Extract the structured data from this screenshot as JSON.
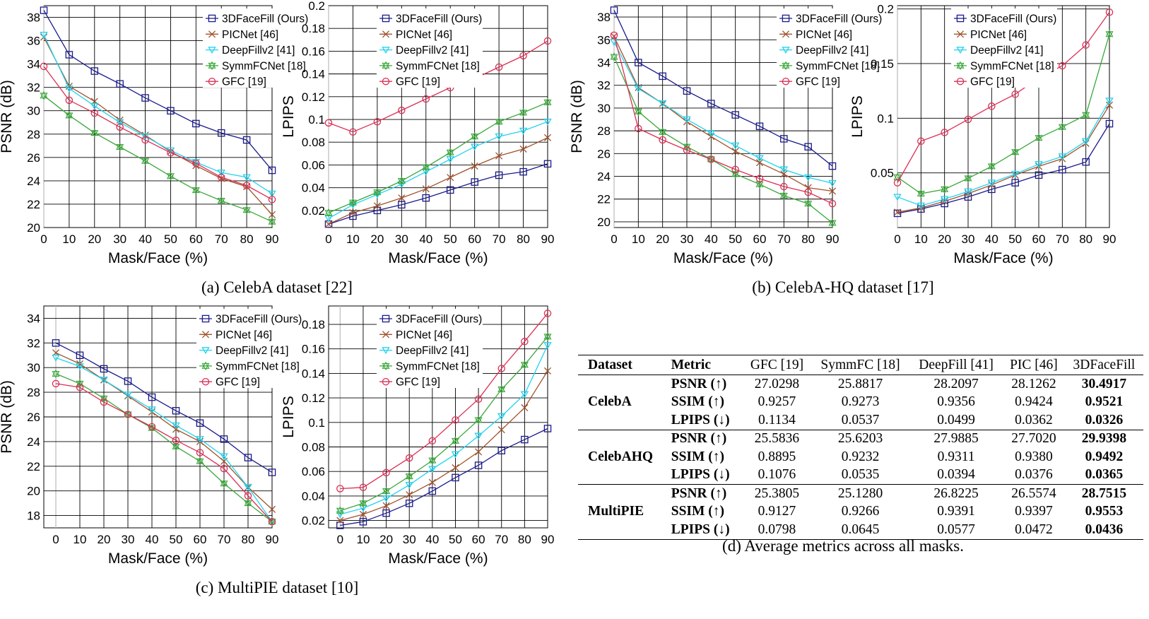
{
  "captions": {
    "a": "(a) CelebA dataset [22]",
    "b": "(b) CelebA-HQ dataset [17]",
    "c": "(c) MultiPIE dataset [10]",
    "d": "(d) Average metrics across all masks."
  },
  "colors": {
    "3dfacefill": "#1a1a8c",
    "picnet": "#a0522d",
    "deepfill": "#22d3ee",
    "symmfc": "#3aa83a",
    "gfc": "#dc2e55"
  },
  "chart_data": [
    {
      "id": "celeba-psnr",
      "type": "line",
      "title": "",
      "xlabel": "Mask/Face (%)",
      "ylabel": "PSNR (dB)",
      "x": [
        0,
        10,
        20,
        30,
        40,
        50,
        60,
        70,
        80,
        90
      ],
      "ylim": [
        20,
        39
      ],
      "yticks": [
        20,
        22,
        24,
        26,
        28,
        30,
        32,
        34,
        36,
        38
      ],
      "yticklabels": [
        "20",
        "22",
        "24",
        "26",
        "28",
        "30",
        "32",
        "34",
        "36",
        "38"
      ],
      "xticklabels": [
        "0",
        "10",
        "20",
        "30",
        "40",
        "50",
        "60",
        "70",
        "80",
        "90"
      ],
      "series": [
        {
          "name": "3DFaceFill (Ours)",
          "key": "3dfacefill",
          "marker": "square",
          "values": [
            38.6,
            34.8,
            33.4,
            32.3,
            31.1,
            30.0,
            28.9,
            28.1,
            27.5,
            24.9
          ]
        },
        {
          "name": "PICNet [46]",
          "key": "picnet",
          "marker": "x",
          "values": [
            36.3,
            32.1,
            30.8,
            29.2,
            27.9,
            26.5,
            25.3,
            24.2,
            23.5,
            21.1
          ]
        },
        {
          "name": "DeepFillv2 [41]",
          "key": "deepfill",
          "marker": "tri",
          "values": [
            36.5,
            31.9,
            30.4,
            29.0,
            27.8,
            26.6,
            25.6,
            24.7,
            24.3,
            22.9
          ]
        },
        {
          "name": "SymmFCNet [18]",
          "key": "symmfc",
          "marker": "star",
          "values": [
            31.3,
            29.6,
            28.1,
            26.9,
            25.7,
            24.4,
            23.2,
            22.3,
            21.5,
            20.5
          ]
        },
        {
          "name": "GFC [19]",
          "key": "gfc",
          "marker": "circle",
          "values": [
            33.8,
            30.9,
            29.8,
            28.6,
            27.5,
            26.4,
            25.5,
            24.3,
            23.6,
            22.4
          ]
        }
      ]
    },
    {
      "id": "celeba-lpips",
      "type": "line",
      "title": "",
      "xlabel": "Mask/Face (%)",
      "ylabel": "LPIPS",
      "x": [
        0,
        10,
        20,
        30,
        40,
        50,
        60,
        70,
        80,
        90
      ],
      "ylim": [
        0.005,
        0.2
      ],
      "yticks": [
        0.02,
        0.04,
        0.06,
        0.08,
        0.1,
        0.12,
        0.14,
        0.16,
        0.18,
        0.2
      ],
      "yticklabels": [
        "0.02",
        "0.04",
        "0.06",
        "0.08",
        "0.1",
        "0.12",
        "0.14",
        "0.16",
        "0.18",
        "0.2"
      ],
      "xticklabels": [
        "0",
        "10",
        "20",
        "30",
        "40",
        "50",
        "60",
        "70",
        "80",
        "90"
      ],
      "series": [
        {
          "name": "3DFaceFill (Ours)",
          "key": "3dfacefill",
          "marker": "square",
          "values": [
            0.008,
            0.015,
            0.02,
            0.025,
            0.031,
            0.038,
            0.045,
            0.051,
            0.054,
            0.061
          ]
        },
        {
          "name": "PICNet [46]",
          "key": "picnet",
          "marker": "x",
          "values": [
            0.008,
            0.018,
            0.024,
            0.031,
            0.039,
            0.049,
            0.059,
            0.068,
            0.074,
            0.084
          ]
        },
        {
          "name": "DeepFillv2 [41]",
          "key": "deepfill",
          "marker": "tri",
          "values": [
            0.013,
            0.025,
            0.034,
            0.043,
            0.054,
            0.065,
            0.076,
            0.085,
            0.09,
            0.098
          ]
        },
        {
          "name": "SymmFCNet [18]",
          "key": "symmfc",
          "marker": "star",
          "values": [
            0.018,
            0.027,
            0.036,
            0.046,
            0.058,
            0.071,
            0.085,
            0.098,
            0.106,
            0.115
          ]
        },
        {
          "name": "GFC [19]",
          "key": "gfc",
          "marker": "circle",
          "values": [
            0.097,
            0.089,
            0.098,
            0.108,
            0.118,
            0.128,
            0.136,
            0.146,
            0.156,
            0.169
          ]
        }
      ]
    },
    {
      "id": "celebahq-psnr",
      "type": "line",
      "title": "",
      "xlabel": "Mask/Face (%)",
      "ylabel": "PSNR (dB)",
      "x": [
        0,
        10,
        20,
        30,
        40,
        50,
        60,
        70,
        80,
        90
      ],
      "ylim": [
        19.5,
        39
      ],
      "yticks": [
        20,
        22,
        24,
        26,
        28,
        30,
        32,
        34,
        36,
        38
      ],
      "yticklabels": [
        "20",
        "22",
        "24",
        "26",
        "28",
        "30",
        "32",
        "34",
        "36",
        "38"
      ],
      "xticklabels": [
        "0",
        "10",
        "20",
        "30",
        "40",
        "50",
        "60",
        "70",
        "80",
        "90"
      ],
      "series": [
        {
          "name": "3DFaceFill (Ours)",
          "key": "3dfacefill",
          "marker": "square",
          "values": [
            38.6,
            34.0,
            32.8,
            31.5,
            30.4,
            29.4,
            28.4,
            27.3,
            26.6,
            24.9
          ]
        },
        {
          "name": "PICNet [46]",
          "key": "picnet",
          "marker": "x",
          "values": [
            36.3,
            31.8,
            30.4,
            28.8,
            27.5,
            26.2,
            25.2,
            24.2,
            23.0,
            22.7
          ]
        },
        {
          "name": "DeepFillv2 [41]",
          "key": "deepfill",
          "marker": "tri",
          "values": [
            35.8,
            31.7,
            30.4,
            29.0,
            27.8,
            26.7,
            25.6,
            24.6,
            23.9,
            23.4
          ]
        },
        {
          "name": "SymmFCNet [18]",
          "key": "symmfc",
          "marker": "star",
          "values": [
            34.5,
            29.7,
            27.9,
            26.6,
            25.5,
            24.2,
            23.3,
            22.3,
            21.6,
            19.9
          ]
        },
        {
          "name": "GFC [19]",
          "key": "gfc",
          "marker": "circle",
          "values": [
            36.4,
            28.2,
            27.2,
            26.3,
            25.5,
            24.6,
            23.8,
            23.1,
            22.6,
            21.6
          ]
        }
      ]
    },
    {
      "id": "celebahq-lpips",
      "type": "line",
      "title": "",
      "xlabel": "Mask/Face (%)",
      "ylabel": "LPIPS",
      "x": [
        0,
        10,
        20,
        30,
        40,
        50,
        60,
        70,
        80,
        90
      ],
      "ylim": [
        0.0,
        0.203
      ],
      "yticks": [
        0.05,
        0.1,
        0.15,
        0.2
      ],
      "yticklabels": [
        "0.05",
        "0.1",
        "0.15",
        "0.2"
      ],
      "xticklabels": [
        "0",
        "10",
        "20",
        "30",
        "40",
        "50",
        "60",
        "70",
        "80",
        "90"
      ],
      "series": [
        {
          "name": "3DFaceFill (Ours)",
          "key": "3dfacefill",
          "marker": "square",
          "values": [
            0.013,
            0.017,
            0.022,
            0.028,
            0.035,
            0.041,
            0.048,
            0.053,
            0.06,
            0.095
          ]
        },
        {
          "name": "PICNet [46]",
          "key": "picnet",
          "marker": "x",
          "values": [
            0.014,
            0.018,
            0.024,
            0.031,
            0.039,
            0.048,
            0.056,
            0.063,
            0.077,
            0.112
          ]
        },
        {
          "name": "DeepFillv2 [41]",
          "key": "deepfill",
          "marker": "tri",
          "values": [
            0.028,
            0.02,
            0.026,
            0.033,
            0.041,
            0.049,
            0.058,
            0.065,
            0.079,
            0.116
          ]
        },
        {
          "name": "SymmFCNet [18]",
          "key": "symmfc",
          "marker": "star",
          "values": [
            0.046,
            0.031,
            0.035,
            0.045,
            0.056,
            0.069,
            0.082,
            0.092,
            0.103,
            0.177
          ]
        },
        {
          "name": "GFC [19]",
          "key": "gfc",
          "marker": "circle",
          "values": [
            0.041,
            0.079,
            0.087,
            0.099,
            0.111,
            0.122,
            0.137,
            0.148,
            0.167,
            0.197
          ]
        }
      ]
    },
    {
      "id": "multipie-psnr",
      "type": "line",
      "title": "",
      "xlabel": "Mask/Face (%)",
      "ylabel": "PSNR (dB)",
      "x": [
        0,
        10,
        20,
        30,
        40,
        50,
        60,
        70,
        80,
        90
      ],
      "xlim": [
        -5,
        90
      ],
      "ylim": [
        17,
        35
      ],
      "yticks": [
        18,
        20,
        22,
        24,
        26,
        28,
        30,
        32,
        34
      ],
      "yticklabels": [
        "18",
        "20",
        "22",
        "24",
        "26",
        "28",
        "30",
        "32",
        "34"
      ],
      "xticklabels": [
        "0",
        "10",
        "20",
        "30",
        "40",
        "50",
        "60",
        "70",
        "80",
        "90"
      ],
      "series": [
        {
          "name": "3DFaceFill (Ours)",
          "key": "3dfacefill",
          "marker": "square",
          "values": [
            32.0,
            31.0,
            29.9,
            28.9,
            27.6,
            26.5,
            25.5,
            24.2,
            22.7,
            21.5
          ]
        },
        {
          "name": "PICNet [46]",
          "key": "picnet",
          "marker": "x",
          "values": [
            31.2,
            30.3,
            29.0,
            27.7,
            26.4,
            25.0,
            24.0,
            22.4,
            20.3,
            18.5
          ]
        },
        {
          "name": "DeepFillv2 [41]",
          "key": "deepfill",
          "marker": "tri",
          "values": [
            30.8,
            30.1,
            29.0,
            27.8,
            26.6,
            25.3,
            24.2,
            22.8,
            20.3,
            17.5
          ]
        },
        {
          "name": "SymmFCNet [18]",
          "key": "symmfc",
          "marker": "star",
          "values": [
            29.5,
            28.7,
            27.5,
            26.2,
            25.1,
            23.6,
            22.4,
            20.6,
            19.0,
            17.5
          ]
        },
        {
          "name": "GFC [19]",
          "key": "gfc",
          "marker": "circle",
          "values": [
            28.7,
            28.4,
            27.2,
            26.2,
            25.2,
            24.1,
            23.1,
            21.8,
            19.6,
            17.5
          ]
        }
      ]
    },
    {
      "id": "multipie-lpips",
      "type": "line",
      "title": "",
      "xlabel": "Mask/Face (%)",
      "ylabel": "LPIPS",
      "x": [
        0,
        10,
        20,
        30,
        40,
        50,
        60,
        70,
        80,
        90
      ],
      "xlim": [
        -5,
        90
      ],
      "ylim": [
        0.014,
        0.195
      ],
      "yticks": [
        0.02,
        0.04,
        0.06,
        0.08,
        0.1,
        0.12,
        0.14,
        0.16,
        0.18
      ],
      "yticklabels": [
        "0.02",
        "0.04",
        "0.06",
        "0.08",
        "0.1",
        "0.12",
        "0.14",
        "0.16",
        "0.18"
      ],
      "xticklabels": [
        "0",
        "10",
        "20",
        "30",
        "40",
        "50",
        "60",
        "70",
        "80",
        "90"
      ],
      "series": [
        {
          "name": "3DFaceFill (Ours)",
          "key": "3dfacefill",
          "marker": "square",
          "values": [
            0.016,
            0.019,
            0.026,
            0.034,
            0.044,
            0.055,
            0.065,
            0.077,
            0.086,
            0.095
          ]
        },
        {
          "name": "PICNet [46]",
          "key": "picnet",
          "marker": "x",
          "values": [
            0.02,
            0.025,
            0.032,
            0.041,
            0.051,
            0.063,
            0.076,
            0.094,
            0.112,
            0.142
          ]
        },
        {
          "name": "DeepFillv2 [41]",
          "key": "deepfill",
          "marker": "tri",
          "values": [
            0.025,
            0.03,
            0.038,
            0.049,
            0.062,
            0.074,
            0.089,
            0.105,
            0.123,
            0.163
          ]
        },
        {
          "name": "SymmFCNet [18]",
          "key": "symmfc",
          "marker": "star",
          "values": [
            0.028,
            0.034,
            0.044,
            0.056,
            0.069,
            0.085,
            0.102,
            0.127,
            0.147,
            0.17
          ]
        },
        {
          "name": "GFC [19]",
          "key": "gfc",
          "marker": "circle",
          "values": [
            0.046,
            0.047,
            0.059,
            0.071,
            0.085,
            0.102,
            0.119,
            0.144,
            0.166,
            0.189
          ]
        }
      ]
    },
    {
      "id": "metrics-table",
      "type": "table",
      "headers": [
        "Dataset",
        "Metric",
        "GFC [19]",
        "SymmFC [18]",
        "DeepFill [41]",
        "PIC [46]",
        "3DFaceFill"
      ],
      "groups": [
        {
          "dataset": "CelebA",
          "rows": [
            {
              "metric": "PSNR (↑)",
              "values": [
                "27.0298",
                "25.8817",
                "28.2097",
                "28.1262",
                "30.4917"
              ]
            },
            {
              "metric": "SSIM (↑)",
              "values": [
                "0.9257",
                "0.9273",
                "0.9356",
                "0.9424",
                "0.9521"
              ]
            },
            {
              "metric": "LPIPS (↓)",
              "values": [
                "0.1134",
                "0.0537",
                "0.0499",
                "0.0362",
                "0.0326"
              ]
            }
          ]
        },
        {
          "dataset": "CelebAHQ",
          "rows": [
            {
              "metric": "PSNR (↑)",
              "values": [
                "25.5836",
                "25.6203",
                "27.9885",
                "27.7020",
                "29.9398"
              ]
            },
            {
              "metric": "SSIM (↑)",
              "values": [
                "0.8895",
                "0.9232",
                "0.9311",
                "0.9380",
                "0.9492"
              ]
            },
            {
              "metric": "LPIPS (↓)",
              "values": [
                "0.1076",
                "0.0535",
                "0.0394",
                "0.0376",
                "0.0365"
              ]
            }
          ]
        },
        {
          "dataset": "MultiPIE",
          "rows": [
            {
              "metric": "PSNR (↑)",
              "values": [
                "25.3805",
                "25.1280",
                "26.8225",
                "26.5574",
                "28.7515"
              ]
            },
            {
              "metric": "SSIM (↑)",
              "values": [
                "0.9127",
                "0.9266",
                "0.9391",
                "0.9397",
                "0.9553"
              ]
            },
            {
              "metric": "LPIPS (↓)",
              "values": [
                "0.0798",
                "0.0645",
                "0.0577",
                "0.0472",
                "0.0436"
              ]
            }
          ]
        }
      ]
    }
  ]
}
